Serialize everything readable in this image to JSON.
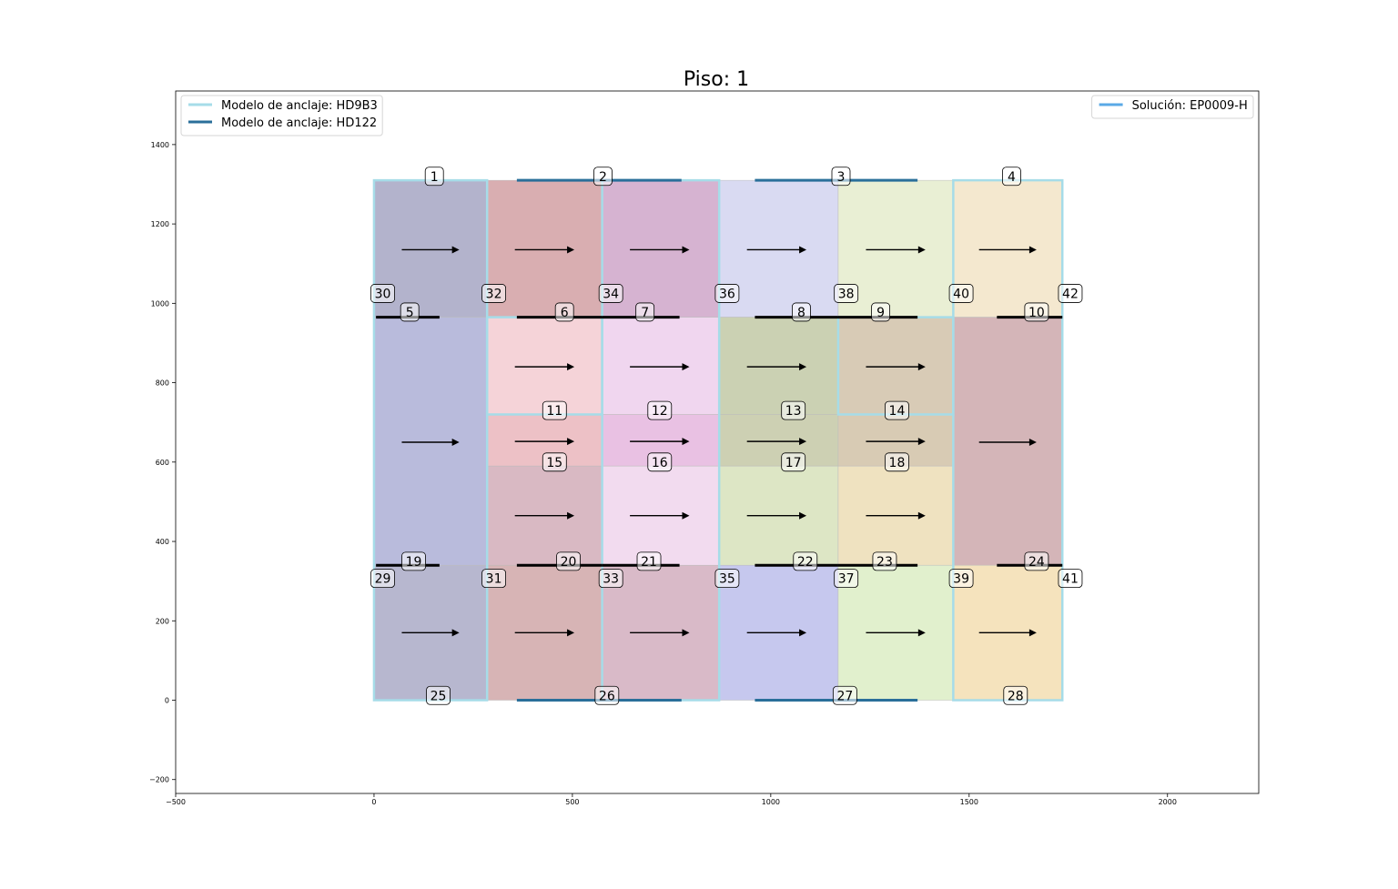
{
  "title": "Piso: 1",
  "colors": {
    "hd9b3": "#a6dce8",
    "hd122": "#2a6f9a",
    "solution": "#5aa9e6",
    "strip": "#000000",
    "arrow": "#000000"
  },
  "legend_left": [
    {
      "label": "Modelo de anclaje: HD9B3",
      "color": "#a6dce8"
    },
    {
      "label": "Modelo de anclaje: HD122",
      "color": "#2a6f9a"
    }
  ],
  "legend_right": [
    {
      "label": "Solución: EP0009-H",
      "color": "#5aa9e6"
    }
  ],
  "chart_data": {
    "type": "diagram",
    "title": "Piso: 1",
    "xlim": [
      -500,
      2230
    ],
    "ylim": [
      -235,
      1535
    ],
    "xticks": [
      {
        "v": -500,
        "t": "−500"
      },
      {
        "v": 0,
        "t": "0"
      },
      {
        "v": 500,
        "t": "500"
      },
      {
        "v": 1000,
        "t": "1000"
      },
      {
        "v": 1500,
        "t": "1500"
      },
      {
        "v": 2000,
        "t": "2000"
      }
    ],
    "yticks": [
      {
        "v": -200,
        "t": "−200"
      },
      {
        "v": 0,
        "t": "0"
      },
      {
        "v": 200,
        "t": "200"
      },
      {
        "v": 400,
        "t": "400"
      },
      {
        "v": 600,
        "t": "600"
      },
      {
        "v": 800,
        "t": "800"
      },
      {
        "v": 1000,
        "t": "1000"
      },
      {
        "v": 1200,
        "t": "1200"
      },
      {
        "v": 1400,
        "t": "1400"
      }
    ],
    "panels": [
      {
        "x": [
          0,
          285
        ],
        "y": [
          965,
          1310
        ],
        "color": "#b3b3cc"
      },
      {
        "x": [
          285,
          575
        ],
        "y": [
          965,
          1310
        ],
        "color": "#d9aeb1"
      },
      {
        "x": [
          575,
          870
        ],
        "y": [
          965,
          1310
        ],
        "color": "#d6b3d1"
      },
      {
        "x": [
          870,
          1170
        ],
        "y": [
          965,
          1310
        ],
        "color": "#d9daf2"
      },
      {
        "x": [
          1170,
          1460
        ],
        "y": [
          965,
          1310
        ],
        "color": "#e9efd4"
      },
      {
        "x": [
          1460,
          1735
        ],
        "y": [
          965,
          1310
        ],
        "color": "#f4e8cf"
      },
      {
        "x": [
          0,
          285
        ],
        "y": [
          340,
          965
        ],
        "color": "#b9bbdc"
      },
      {
        "x": [
          285,
          575
        ],
        "y": [
          720,
          965
        ],
        "color": "#f5d3d8"
      },
      {
        "x": [
          575,
          870
        ],
        "y": [
          720,
          965
        ],
        "color": "#f0d6ef"
      },
      {
        "x": [
          870,
          1170
        ],
        "y": [
          720,
          965
        ],
        "color": "#cbd1b3"
      },
      {
        "x": [
          1170,
          1460
        ],
        "y": [
          720,
          965
        ],
        "color": "#d8cbb6"
      },
      {
        "x": [
          1460,
          1735
        ],
        "y": [
          340,
          965
        ],
        "color": "#d4b5b8"
      },
      {
        "x": [
          285,
          575
        ],
        "y": [
          590,
          720
        ],
        "color": "#edc1c6"
      },
      {
        "x": [
          575,
          870
        ],
        "y": [
          590,
          720
        ],
        "color": "#e9c1e3"
      },
      {
        "x": [
          870,
          1170
        ],
        "y": [
          590,
          720
        ],
        "color": "#cdd0b3"
      },
      {
        "x": [
          1170,
          1460
        ],
        "y": [
          590,
          720
        ],
        "color": "#d8cbb4"
      },
      {
        "x": [
          285,
          575
        ],
        "y": [
          340,
          590
        ],
        "color": "#d9b9c3"
      },
      {
        "x": [
          575,
          870
        ],
        "y": [
          340,
          590
        ],
        "color": "#f2dbef"
      },
      {
        "x": [
          870,
          1170
        ],
        "y": [
          340,
          590
        ],
        "color": "#dde6c5"
      },
      {
        "x": [
          1170,
          1460
        ],
        "y": [
          340,
          590
        ],
        "color": "#efe2c0"
      },
      {
        "x": [
          0,
          285
        ],
        "y": [
          0,
          340
        ],
        "color": "#b7b7cf"
      },
      {
        "x": [
          285,
          575
        ],
        "y": [
          0,
          340
        ],
        "color": "#d7b4b5"
      },
      {
        "x": [
          575,
          870
        ],
        "y": [
          0,
          340
        ],
        "color": "#d9bac8"
      },
      {
        "x": [
          870,
          1170
        ],
        "y": [
          0,
          340
        ],
        "color": "#c6c8ee"
      },
      {
        "x": [
          1170,
          1460
        ],
        "y": [
          0,
          340
        ],
        "color": "#e1f0cd"
      },
      {
        "x": [
          1460,
          1735
        ],
        "y": [
          0,
          340
        ],
        "color": "#f5e3bd"
      }
    ],
    "outline_hd9b3": [
      {
        "x": [
          0,
          285
        ],
        "y": [
          0,
          1310
        ]
      },
      {
        "x": [
          1460,
          1735
        ],
        "y": [
          0,
          1310
        ]
      },
      {
        "x": [
          575,
          870
        ],
        "y": [
          0,
          1310
        ]
      },
      {
        "x": [
          285,
          575
        ],
        "y": [
          720,
          965
        ]
      },
      {
        "x": [
          1170,
          1460
        ],
        "y": [
          720,
          965
        ]
      }
    ],
    "top_bars_hd122": [
      {
        "x": [
          360,
          775
        ],
        "y": 1310
      },
      {
        "x": [
          960,
          1370
        ],
        "y": 1310
      },
      {
        "x": [
          360,
          775
        ],
        "y": 0
      },
      {
        "x": [
          960,
          1370
        ],
        "y": 0
      }
    ],
    "strips": [
      {
        "x": [
          5,
          165
        ],
        "y": 965
      },
      {
        "x": [
          360,
          575
        ],
        "y": 965
      },
      {
        "x": [
          575,
          770
        ],
        "y": 965
      },
      {
        "x": [
          960,
          1170
        ],
        "y": 965
      },
      {
        "x": [
          1170,
          1370
        ],
        "y": 965
      },
      {
        "x": [
          1570,
          1735
        ],
        "y": 965
      },
      {
        "x": [
          5,
          165
        ],
        "y": 340
      },
      {
        "x": [
          360,
          575
        ],
        "y": 340
      },
      {
        "x": [
          575,
          770
        ],
        "y": 340
      },
      {
        "x": [
          960,
          1170
        ],
        "y": 340
      },
      {
        "x": [
          1170,
          1370
        ],
        "y": 340
      },
      {
        "x": [
          1570,
          1735
        ],
        "y": 340
      }
    ],
    "arrows": [
      {
        "x": [
          70,
          215
        ],
        "y": 1135
      },
      {
        "x": [
          355,
          505
        ],
        "y": 1135
      },
      {
        "x": [
          645,
          795
        ],
        "y": 1135
      },
      {
        "x": [
          940,
          1090
        ],
        "y": 1135
      },
      {
        "x": [
          1240,
          1390
        ],
        "y": 1135
      },
      {
        "x": [
          1525,
          1670
        ],
        "y": 1135
      },
      {
        "x": [
          355,
          505
        ],
        "y": 840
      },
      {
        "x": [
          645,
          795
        ],
        "y": 840
      },
      {
        "x": [
          940,
          1090
        ],
        "y": 840
      },
      {
        "x": [
          1240,
          1390
        ],
        "y": 840
      },
      {
        "x": [
          70,
          215
        ],
        "y": 650
      },
      {
        "x": [
          355,
          505
        ],
        "y": 652
      },
      {
        "x": [
          645,
          795
        ],
        "y": 652
      },
      {
        "x": [
          940,
          1090
        ],
        "y": 652
      },
      {
        "x": [
          1240,
          1390
        ],
        "y": 652
      },
      {
        "x": [
          1525,
          1670
        ],
        "y": 650
      },
      {
        "x": [
          355,
          505
        ],
        "y": 465
      },
      {
        "x": [
          645,
          795
        ],
        "y": 465
      },
      {
        "x": [
          940,
          1090
        ],
        "y": 465
      },
      {
        "x": [
          1240,
          1390
        ],
        "y": 465
      },
      {
        "x": [
          70,
          215
        ],
        "y": 170
      },
      {
        "x": [
          355,
          505
        ],
        "y": 170
      },
      {
        "x": [
          645,
          795
        ],
        "y": 170
      },
      {
        "x": [
          940,
          1090
        ],
        "y": 170
      },
      {
        "x": [
          1240,
          1390
        ],
        "y": 170
      },
      {
        "x": [
          1525,
          1670
        ],
        "y": 170
      }
    ],
    "labels": [
      {
        "t": "1",
        "x": 152,
        "y": 1320
      },
      {
        "t": "2",
        "x": 577,
        "y": 1320
      },
      {
        "t": "3",
        "x": 1177,
        "y": 1320
      },
      {
        "t": "4",
        "x": 1607,
        "y": 1320
      },
      {
        "t": "30",
        "x": 22,
        "y": 1025
      },
      {
        "t": "32",
        "x": 302,
        "y": 1025
      },
      {
        "t": "34",
        "x": 597,
        "y": 1025
      },
      {
        "t": "36",
        "x": 890,
        "y": 1025
      },
      {
        "t": "38",
        "x": 1190,
        "y": 1025
      },
      {
        "t": "40",
        "x": 1480,
        "y": 1025
      },
      {
        "t": "42",
        "x": 1755,
        "y": 1025
      },
      {
        "t": "5",
        "x": 90,
        "y": 978
      },
      {
        "t": "6",
        "x": 480,
        "y": 978
      },
      {
        "t": "7",
        "x": 683,
        "y": 978
      },
      {
        "t": "8",
        "x": 1077,
        "y": 978
      },
      {
        "t": "9",
        "x": 1277,
        "y": 978
      },
      {
        "t": "10",
        "x": 1670,
        "y": 978
      },
      {
        "t": "11",
        "x": 455,
        "y": 730
      },
      {
        "t": "12",
        "x": 720,
        "y": 730
      },
      {
        "t": "13",
        "x": 1057,
        "y": 730
      },
      {
        "t": "14",
        "x": 1318,
        "y": 730
      },
      {
        "t": "15",
        "x": 455,
        "y": 600
      },
      {
        "t": "16",
        "x": 720,
        "y": 600
      },
      {
        "t": "17",
        "x": 1057,
        "y": 600
      },
      {
        "t": "18",
        "x": 1318,
        "y": 600
      },
      {
        "t": "19",
        "x": 100,
        "y": 350
      },
      {
        "t": "20",
        "x": 490,
        "y": 350
      },
      {
        "t": "21",
        "x": 693,
        "y": 350
      },
      {
        "t": "22",
        "x": 1087,
        "y": 350
      },
      {
        "t": "23",
        "x": 1287,
        "y": 350
      },
      {
        "t": "24",
        "x": 1670,
        "y": 350
      },
      {
        "t": "29",
        "x": 22,
        "y": 307
      },
      {
        "t": "31",
        "x": 302,
        "y": 307
      },
      {
        "t": "33",
        "x": 597,
        "y": 307
      },
      {
        "t": "35",
        "x": 890,
        "y": 307
      },
      {
        "t": "37",
        "x": 1190,
        "y": 307
      },
      {
        "t": "39",
        "x": 1480,
        "y": 307
      },
      {
        "t": "41",
        "x": 1755,
        "y": 307
      },
      {
        "t": "25",
        "x": 162,
        "y": 12
      },
      {
        "t": "26",
        "x": 587,
        "y": 12
      },
      {
        "t": "27",
        "x": 1187,
        "y": 12
      },
      {
        "t": "28",
        "x": 1617,
        "y": 12
      }
    ]
  }
}
